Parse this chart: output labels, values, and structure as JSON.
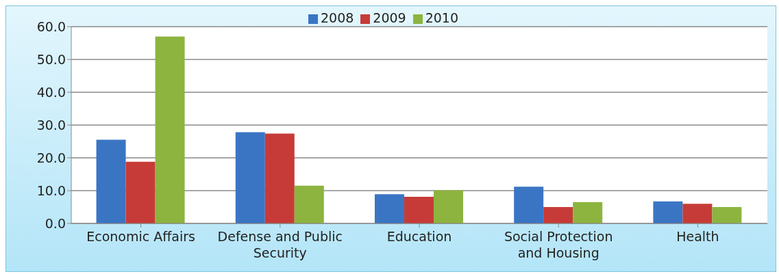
{
  "chart_data": {
    "type": "bar",
    "categories": [
      "Economic Affairs",
      "Defense and Public Security",
      "Education",
      "Social Protection and Housing",
      "Health"
    ],
    "series": [
      {
        "name": "2008",
        "color": "#3a75c4",
        "values": [
          25.5,
          27.8,
          8.9,
          11.2,
          6.7
        ]
      },
      {
        "name": "2009",
        "color": "#c63b37",
        "values": [
          18.8,
          27.4,
          8.1,
          5.0,
          6.0
        ]
      },
      {
        "name": "2010",
        "color": "#8cb43f",
        "values": [
          57.0,
          11.5,
          10.1,
          6.5,
          5.0
        ]
      }
    ],
    "ylim": [
      0,
      60
    ],
    "yticks": [
      {
        "value": 0,
        "label": "0.0"
      },
      {
        "value": 10,
        "label": "10.0"
      },
      {
        "value": 20,
        "label": "20.0"
      },
      {
        "value": 30,
        "label": "30.0"
      },
      {
        "value": 40,
        "label": "40.0"
      },
      {
        "value": 50,
        "label": "50.0"
      },
      {
        "value": 60,
        "label": "60.0"
      }
    ],
    "grid": "y",
    "legend": "top"
  }
}
